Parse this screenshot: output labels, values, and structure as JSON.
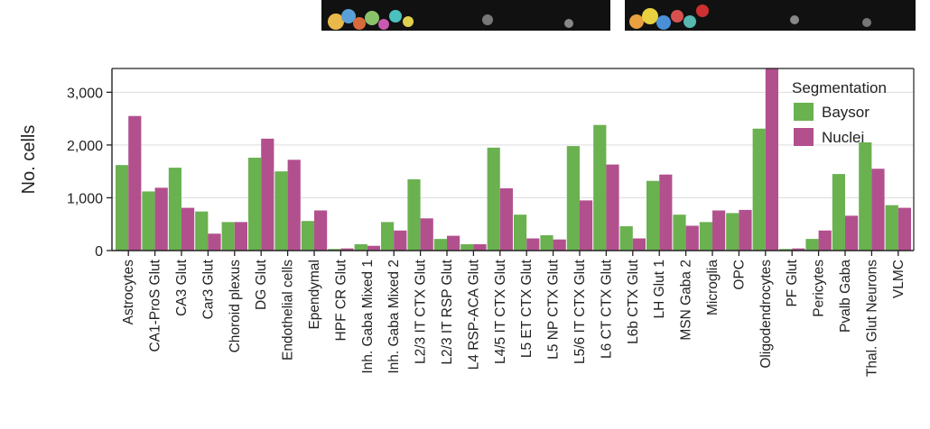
{
  "chart_data": {
    "type": "bar",
    "xlabel": "",
    "ylabel": "No. cells",
    "ylim": [
      0,
      3450
    ],
    "yticks": [
      0,
      1000,
      2000,
      3000
    ],
    "ytick_labels": [
      "0",
      "1,000",
      "2,000",
      "3,000"
    ],
    "grid": "horizontal",
    "legend_title": "Segmentation",
    "legend_position": "top-right",
    "categories": [
      "Astrocytes",
      "CA1-ProS Glut",
      "CA3 Glut",
      "Car3 Glut",
      "Choroid plexus",
      "DG Glut",
      "Endothelial cells",
      "Ependymal",
      "HPF CR Glut",
      "Inh. Gaba Mixed 1",
      "Inh. Gaba Mixed 2",
      "L2/3 IT CTX Glut",
      "L2/3 IT RSP Glut",
      "L4 RSP-ACA Glut",
      "L4/5 IT CTX Glut",
      "L5 ET CTX Glut",
      "L5 NP CTX Glut",
      "L5/6 IT CTX Glut",
      "L6 CT CTX Glut",
      "L6b CTX Glut",
      "LH Glut 1",
      "MSN Gaba 2",
      "Microglia",
      "OPC",
      "Oligodendrocytes",
      "PF Glut",
      "Pericytes",
      "Pvalb Gaba",
      "Thal. Glut Neurons",
      "VLMC"
    ],
    "series": [
      {
        "name": "Baysor",
        "color": "#6ab150",
        "values": [
          1620,
          1120,
          1570,
          740,
          540,
          1760,
          1500,
          560,
          30,
          120,
          540,
          1350,
          220,
          120,
          1950,
          680,
          290,
          1980,
          2380,
          460,
          1320,
          680,
          540,
          710,
          2310,
          30,
          220,
          1450,
          2050,
          860
        ]
      },
      {
        "name": "Nuclei",
        "color": "#b2508e",
        "values": [
          2550,
          1190,
          810,
          320,
          540,
          2120,
          1720,
          760,
          40,
          90,
          380,
          610,
          280,
          120,
          1180,
          230,
          210,
          950,
          1630,
          230,
          1440,
          470,
          760,
          770,
          3460,
          40,
          380,
          660,
          1550,
          810
        ]
      }
    ]
  },
  "colors": {
    "axis": "#222222",
    "grid": "#dddddd"
  }
}
